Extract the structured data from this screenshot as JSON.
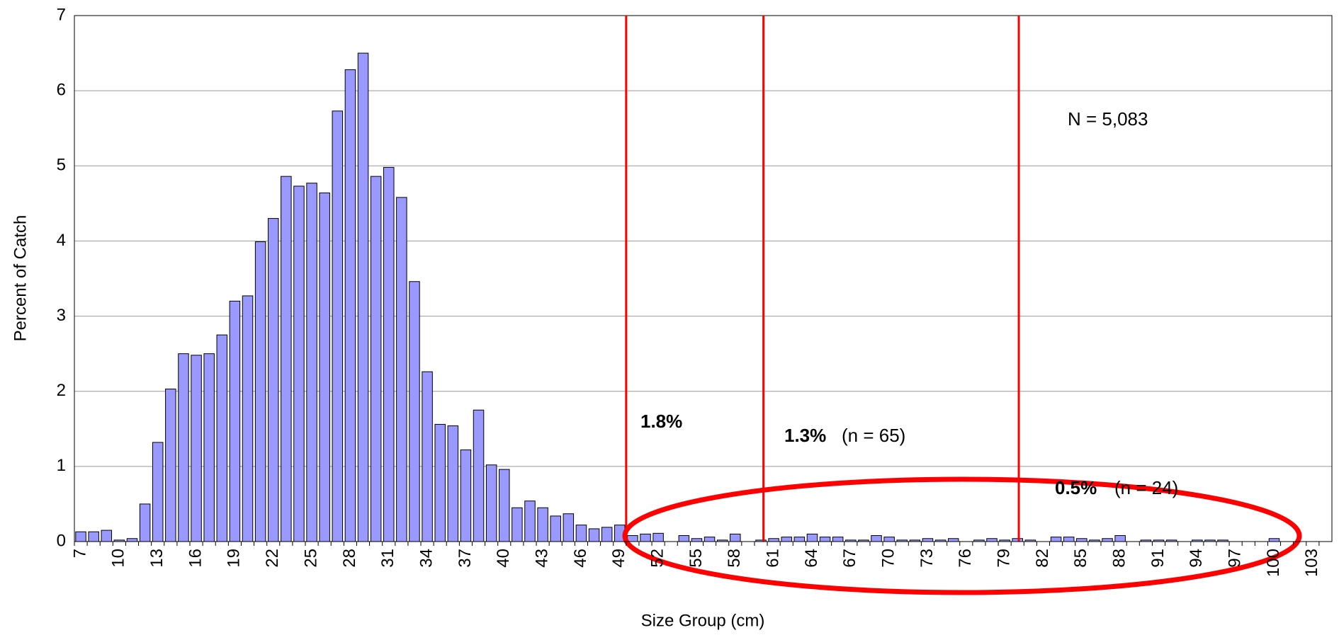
{
  "chart_data": {
    "type": "bar",
    "x_label": "Size Group (cm)",
    "y_label": "Percent of Catch",
    "categories": [
      "7",
      null,
      null,
      "10",
      null,
      null,
      "13",
      null,
      null,
      "16",
      null,
      null,
      "19",
      null,
      null,
      "22",
      null,
      null,
      "25",
      null,
      null,
      "28",
      null,
      null,
      "31",
      null,
      null,
      "34",
      null,
      null,
      "37",
      null,
      null,
      "40",
      null,
      null,
      "43",
      null,
      null,
      "46",
      null,
      null,
      "49",
      null,
      null,
      "52",
      null,
      null,
      "55",
      null,
      null,
      "58",
      null,
      null,
      "61",
      null,
      null,
      "64",
      null,
      null,
      "67",
      null,
      null,
      "70",
      null,
      null,
      "73",
      null,
      null,
      "76",
      null,
      null,
      "79",
      null,
      null,
      "82",
      null,
      null,
      "85",
      null,
      null,
      "88",
      null,
      null,
      "91",
      null,
      null,
      "94",
      null,
      null,
      "97",
      null,
      null,
      "100",
      null,
      null,
      "103",
      null
    ],
    "values": [
      0.13,
      0.13,
      0.15,
      0.02,
      0.04,
      0.5,
      1.32,
      2.03,
      2.5,
      2.48,
      2.5,
      2.75,
      3.2,
      3.27,
      3.99,
      4.3,
      4.86,
      4.73,
      4.77,
      4.64,
      5.73,
      6.28,
      6.5,
      4.86,
      4.98,
      4.58,
      3.46,
      2.26,
      1.56,
      1.54,
      1.22,
      1.75,
      1.02,
      0.96,
      0.45,
      0.54,
      0.45,
      0.34,
      0.37,
      0.22,
      0.17,
      0.19,
      0.22,
      0.08,
      0.1,
      0.11,
      0,
      0.08,
      0.04,
      0.06,
      0.02,
      0.1,
      0,
      0.02,
      0.04,
      0.06,
      0.06,
      0.1,
      0.06,
      0.06,
      0.02,
      0.02,
      0.08,
      0.06,
      0.02,
      0.02,
      0.04,
      0.02,
      0.04,
      0,
      0.02,
      0.04,
      0.02,
      0.04,
      0.02,
      0,
      0.06,
      0.06,
      0.04,
      0.02,
      0.04,
      0.08,
      0,
      0.02,
      0.02,
      0.02,
      0,
      0.02,
      0.02,
      0.02,
      0,
      0,
      0,
      0.04,
      0,
      0,
      0,
      0
    ],
    "color": "#9999ff",
    "ylim": [
      0,
      7
    ],
    "yticks": [
      0,
      1,
      2,
      3,
      4,
      5,
      6,
      7
    ],
    "grid": true,
    "reference_lines": {
      "color": "#ff0000",
      "x": [
        49.5,
        60.2,
        80.1
      ]
    },
    "annotations": {
      "total": "N = 5,083",
      "pct_1": "1.8%",
      "pct_2": "1.3%",
      "n_2": "(n = 65)",
      "pct_3": "0.5%",
      "n_3": "(n = 24)"
    }
  }
}
